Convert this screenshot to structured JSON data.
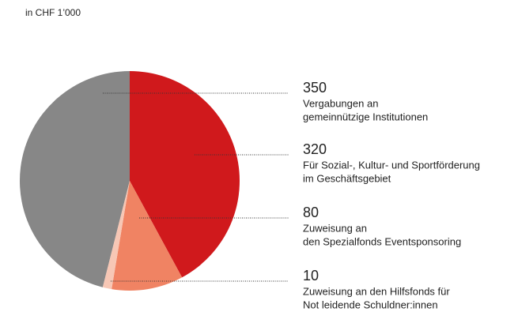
{
  "chart_data": {
    "type": "pie",
    "subtitle": "in CHF 1’000",
    "values": [
      350,
      320,
      80,
      10
    ],
    "labels": [
      [
        "Vergabungen an",
        "gemeinnützige Institutionen"
      ],
      [
        "Für Sozial-, Kultur- und Sportförderung",
        "im Geschäftsgebiet"
      ],
      [
        "Zuweisung an",
        "den Spezialfonds Eventsponsoring"
      ],
      [
        "Zuweisung an den Hilfsfonds für",
        "Not leidende Schuldner:innen"
      ]
    ],
    "colors": [
      "#878787",
      "#d0191c",
      "#f08363",
      "#f7c7b5"
    ]
  }
}
